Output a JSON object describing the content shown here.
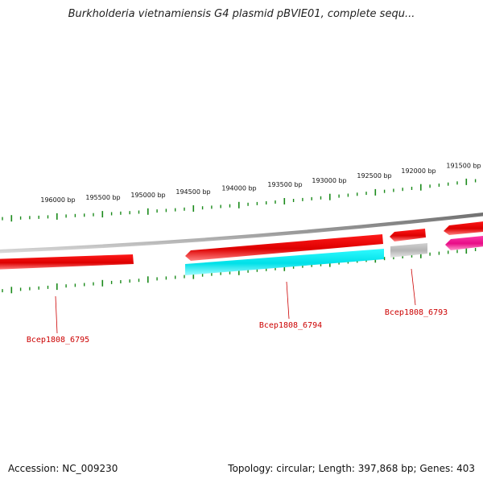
{
  "title": "Burkholderia vietnamiensis G4 plasmid pBVIE01, complete sequ...",
  "footer": {
    "accession": "Accession: NC_009230",
    "summary": "Topology: circular; Length: 397,868 bp; Genes: 403"
  },
  "colors": {
    "tick": "#1a8a1a",
    "backbone": "#8a8a8a",
    "gene_label": "#cc0000",
    "forward_cds": "#ee0000",
    "reverse_cds": "#00e5ee",
    "pseudo": "#bdbdbd",
    "misc": "#ee1f8f"
  },
  "scale_labels": [
    "196000 bp",
    "195500 bp",
    "195000 bp",
    "194500 bp",
    "194000 bp",
    "193500 bp",
    "193000 bp",
    "192500 bp",
    "192000 bp",
    "191500 bp"
  ],
  "genes": [
    {
      "name": "Bcep1808_6795",
      "strand": "forward",
      "color": "forward_cds"
    },
    {
      "name": "Bcep1808_6794",
      "strand": "reverse",
      "color": "reverse_cds"
    },
    {
      "name": "Bcep1808_6793",
      "strand": "reverse",
      "color": "pseudo"
    }
  ],
  "features": [
    {
      "strand": "forward",
      "color": "forward_cds",
      "arrow": "none"
    },
    {
      "strand": "forward",
      "color": "forward_cds",
      "arrow": "left"
    },
    {
      "strand": "forward",
      "color": "forward_cds",
      "arrow": "left"
    },
    {
      "strand": "forward",
      "color": "forward_cds",
      "arrow": "left"
    },
    {
      "strand": "reverse",
      "color": "misc",
      "arrow": "left"
    }
  ]
}
